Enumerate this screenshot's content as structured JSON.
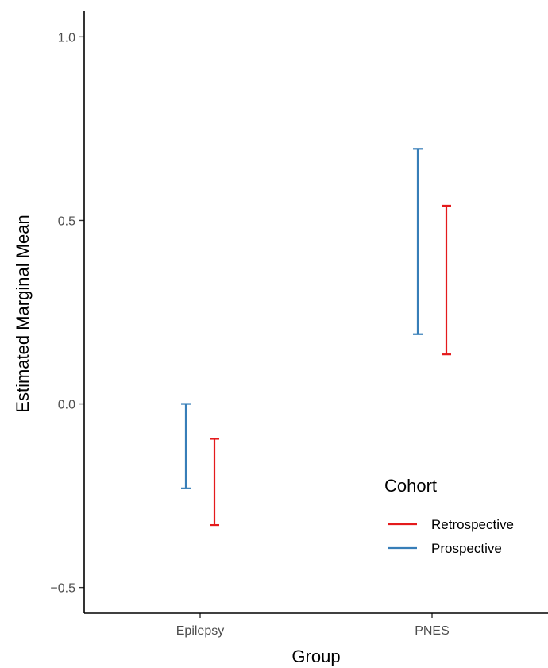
{
  "chart_data": {
    "type": "errorbar",
    "title": "",
    "xlabel": "Group",
    "ylabel": "Estimated Marginal Mean",
    "categories": [
      "Epilepsy",
      "PNES"
    ],
    "ylim": [
      -0.57,
      1.07
    ],
    "y_ticks": [
      -0.5,
      0.0,
      0.5,
      1.0
    ],
    "y_tick_labels": [
      "−0.5",
      "0.0",
      "0.5",
      "1.0"
    ],
    "grid": false,
    "legend": {
      "title": "Cohort",
      "placement": "bottom-right",
      "entries": [
        "Retrospective",
        "Prospective"
      ]
    },
    "series": [
      {
        "name": "Retrospective",
        "color": "#e41a1c",
        "lower": [
          -0.33,
          0.135
        ],
        "upper": [
          -0.095,
          0.54
        ]
      },
      {
        "name": "Prospective",
        "color": "#377eb8",
        "lower": [
          -0.23,
          0.19
        ],
        "upper": [
          0.0,
          0.695
        ]
      }
    ]
  }
}
